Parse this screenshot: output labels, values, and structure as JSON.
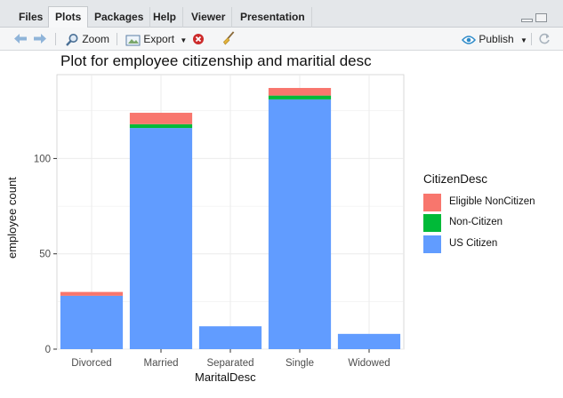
{
  "tabs": [
    {
      "label": "Files",
      "active": false
    },
    {
      "label": "Plots",
      "active": true
    },
    {
      "label": "Packages",
      "active": false
    },
    {
      "label": "Help",
      "active": false
    },
    {
      "label": "Viewer",
      "active": false
    },
    {
      "label": "Presentation",
      "active": false
    }
  ],
  "toolbar": {
    "zoom_label": "Zoom",
    "export_label": "Export",
    "publish_label": "Publish"
  },
  "colors": {
    "eligible_noncitizen": "#f8766d",
    "non_citizen": "#00ba38",
    "us_citizen": "#619cff",
    "grid": "#ebebeb"
  },
  "chart_data": {
    "type": "bar",
    "stacked": true,
    "title": "Plot for employee citizenship and maritial desc",
    "xlabel": "MaritalDesc",
    "ylabel": "employee count",
    "categories": [
      "Divorced",
      "Married",
      "Separated",
      "Single",
      "Widowed"
    ],
    "series": [
      {
        "name": "US Citizen",
        "color": "#619cff",
        "values": [
          28,
          116,
          12,
          131,
          8
        ]
      },
      {
        "name": "Non-Citizen",
        "color": "#00ba38",
        "values": [
          0,
          2,
          0,
          2,
          0
        ]
      },
      {
        "name": "Eligible NonCitizen",
        "color": "#f8766d",
        "values": [
          2,
          6,
          0,
          4,
          0
        ]
      }
    ],
    "yticks": [
      0,
      50,
      100
    ],
    "ylim": [
      0,
      144
    ],
    "legend": {
      "title": "CitizenDesc",
      "position": "right",
      "entries": [
        "Eligible NonCitizen",
        "Non-Citizen",
        "US Citizen"
      ]
    },
    "grid": true
  }
}
